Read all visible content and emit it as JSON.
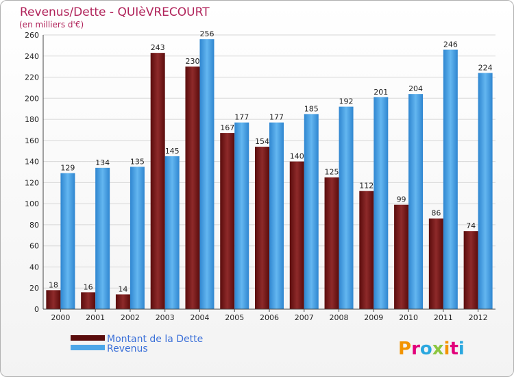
{
  "chart_data": {
    "type": "bar",
    "title": "Revenus/Dette - QUIèVRECOURT",
    "subtitle": "(en milliers d'€)",
    "categories": [
      "2000",
      "2001",
      "2002",
      "2003",
      "2004",
      "2005",
      "2006",
      "2007",
      "2008",
      "2009",
      "2010",
      "2011",
      "2012"
    ],
    "series": [
      {
        "name": "Montant de la Dette",
        "color": "#7a1515",
        "values": [
          18,
          16,
          14,
          243,
          230,
          167,
          154,
          140,
          125,
          112,
          99,
          86,
          74
        ]
      },
      {
        "name": "Revenus",
        "color": "#4da6e8",
        "values": [
          129,
          134,
          135,
          145,
          256,
          177,
          177,
          185,
          192,
          201,
          204,
          246,
          224
        ]
      }
    ],
    "ylim": [
      0,
      260
    ],
    "yticks": [
      0,
      20,
      40,
      60,
      80,
      100,
      120,
      140,
      160,
      180,
      200,
      220,
      240,
      260
    ],
    "grid": true,
    "legend_position": "bottom-left"
  },
  "brand": {
    "name": "Proxiti"
  }
}
